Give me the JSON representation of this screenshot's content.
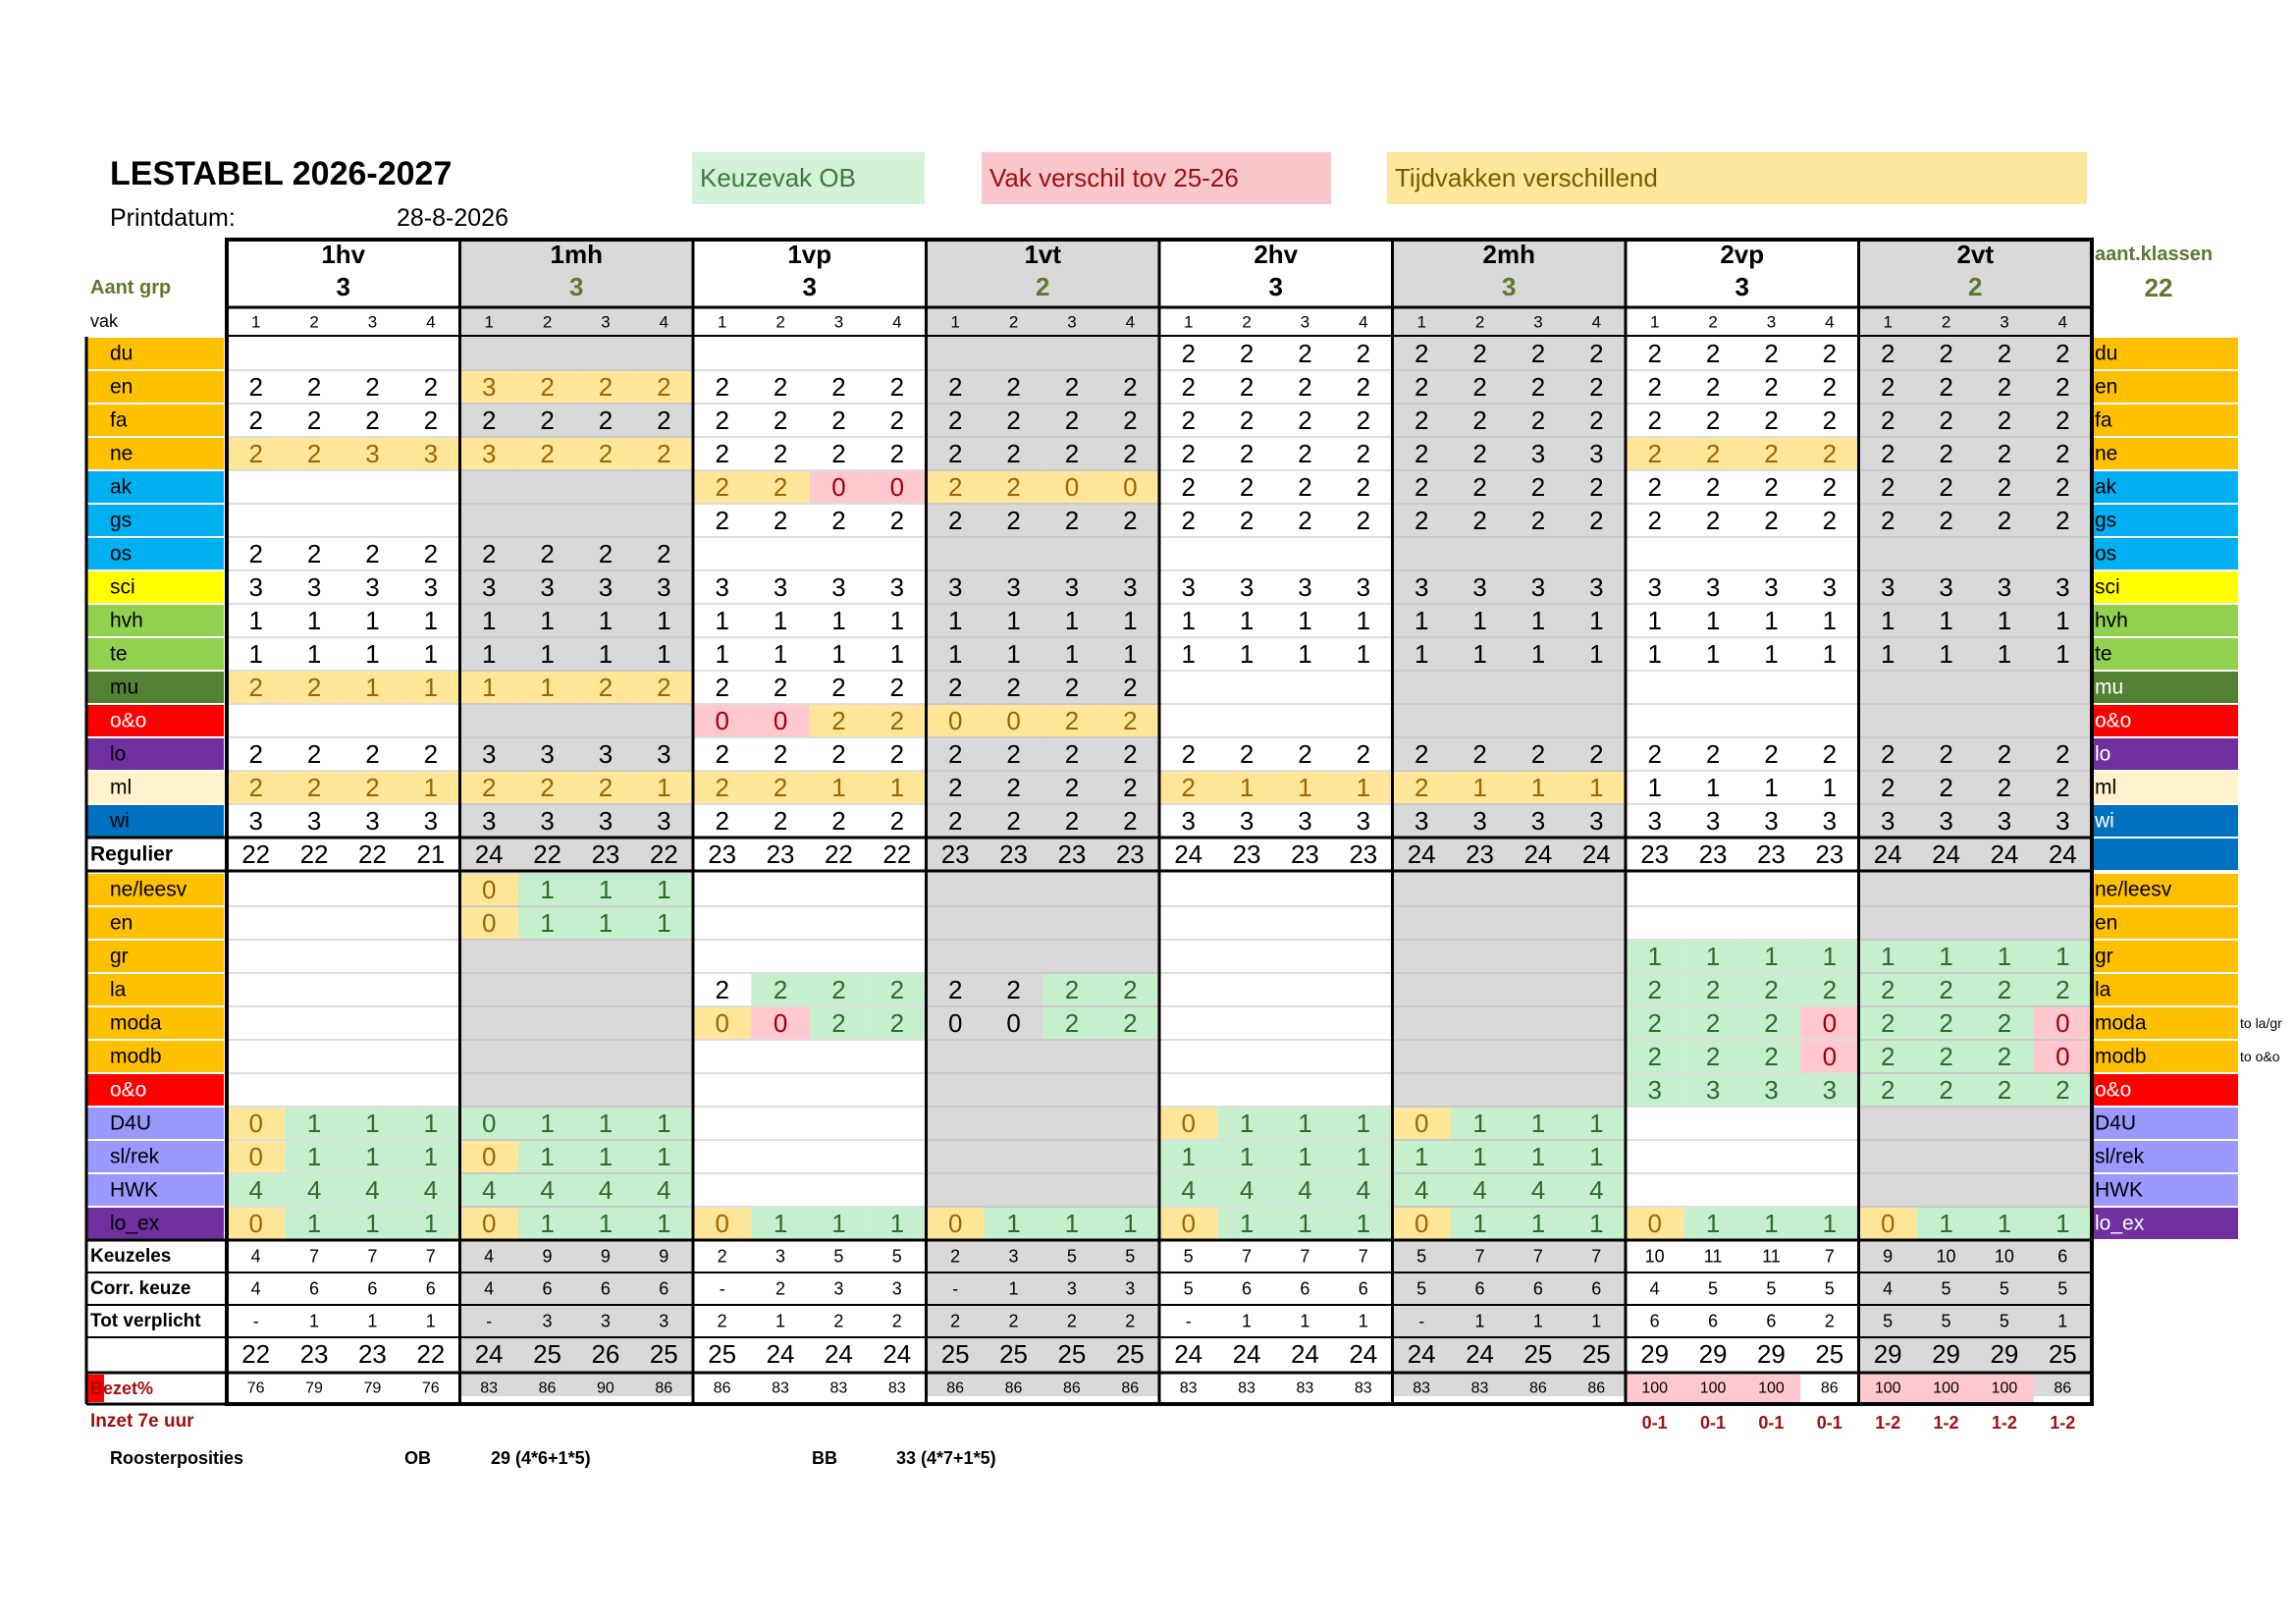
{
  "title": "LESTABEL 2026-2027",
  "print_label": "Printdatum:",
  "print_date": "28-8-2026",
  "legend": {
    "green": "Keuzevak OB",
    "red": "Vak verschil tov 25-26",
    "yellow": "Tijdvakken verschillend"
  },
  "aant_grp_label": "Aant grp",
  "aant_klassen_label": "aant.klassen",
  "aant_klassen_value": "22",
  "vak_header": "vak",
  "periods": [
    "1",
    "2",
    "3",
    "4"
  ],
  "groups": [
    {
      "name": "1hv",
      "count": "3"
    },
    {
      "name": "1mh",
      "count": "3"
    },
    {
      "name": "1vp",
      "count": "3"
    },
    {
      "name": "1vt",
      "count": "2"
    },
    {
      "name": "2hv",
      "count": "3"
    },
    {
      "name": "2mh",
      "count": "3"
    },
    {
      "name": "2vp",
      "count": "3"
    },
    {
      "name": "2vt",
      "count": "2"
    }
  ],
  "colors": {
    "orange": "#ffc000",
    "blue": "#00b0f0",
    "yellow": "#ffff00",
    "green": "#92d050",
    "darkgreen": "#548235",
    "red": "#ff0000",
    "purple": "#7030a0",
    "cream": "#fff2cc",
    "navy": "#0070c0",
    "lavender": "#9999ff",
    "grayband": "#d9d9d9",
    "cellY": "#ffe699",
    "cellG": "#c6efce",
    "cellR": "#ffc7ce"
  },
  "subjects": [
    {
      "name": "du",
      "color": "orange",
      "right": "du",
      "vals": [
        "",
        "",
        "",
        "",
        "",
        "",
        "",
        "",
        "",
        "",
        "",
        "",
        "",
        "",
        "",
        "",
        "2",
        "2",
        "2",
        "2",
        "2",
        "2",
        "2",
        "2",
        "2",
        "2",
        "2",
        "2",
        "2",
        "2",
        "2",
        "2"
      ],
      "hl": ""
    },
    {
      "name": "en",
      "color": "orange",
      "right": "en",
      "vals": [
        "2",
        "2",
        "2",
        "2",
        "3",
        "2",
        "2",
        "2",
        "2",
        "2",
        "2",
        "2",
        "2",
        "2",
        "2",
        "2",
        "2",
        "2",
        "2",
        "2",
        "2",
        "2",
        "2",
        "2",
        "2",
        "2",
        "2",
        "2",
        "2",
        "2",
        "2",
        "2"
      ],
      "hl": "....YYYY........................"
    },
    {
      "name": "fa",
      "color": "orange",
      "right": "fa",
      "vals": [
        "2",
        "2",
        "2",
        "2",
        "2",
        "2",
        "2",
        "2",
        "2",
        "2",
        "2",
        "2",
        "2",
        "2",
        "2",
        "2",
        "2",
        "2",
        "2",
        "2",
        "2",
        "2",
        "2",
        "2",
        "2",
        "2",
        "2",
        "2",
        "2",
        "2",
        "2",
        "2"
      ],
      "hl": ""
    },
    {
      "name": "ne",
      "color": "orange",
      "right": "ne",
      "vals": [
        "2",
        "2",
        "3",
        "3",
        "3",
        "2",
        "2",
        "2",
        "2",
        "2",
        "2",
        "2",
        "2",
        "2",
        "2",
        "2",
        "2",
        "2",
        "2",
        "2",
        "2",
        "2",
        "3",
        "3",
        "2",
        "2",
        "2",
        "2",
        "2",
        "2",
        "2",
        "2"
      ],
      "hl": "YYYYYYYY................YYYY........"
    },
    {
      "name": "ak",
      "color": "blue",
      "right": "ak",
      "vals": [
        "",
        "",
        "",
        "",
        "",
        "",
        "",
        "",
        "2",
        "2",
        "0",
        "0",
        "2",
        "2",
        "0",
        "0",
        "2",
        "2",
        "2",
        "2",
        "2",
        "2",
        "2",
        "2",
        "2",
        "2",
        "2",
        "2",
        "2",
        "2",
        "2",
        "2"
      ],
      "hl": "........YYRRYYYY................"
    },
    {
      "name": "gs",
      "color": "blue",
      "right": "gs",
      "vals": [
        "",
        "",
        "",
        "",
        "",
        "",
        "",
        "",
        "2",
        "2",
        "2",
        "2",
        "2",
        "2",
        "2",
        "2",
        "2",
        "2",
        "2",
        "2",
        "2",
        "2",
        "2",
        "2",
        "2",
        "2",
        "2",
        "2",
        "2",
        "2",
        "2",
        "2"
      ],
      "hl": ""
    },
    {
      "name": "os",
      "color": "blue",
      "right": "os",
      "vals": [
        "2",
        "2",
        "2",
        "2",
        "2",
        "2",
        "2",
        "2",
        "",
        "",
        "",
        "",
        "",
        "",
        "",
        "",
        "",
        "",
        "",
        "",
        "",
        "",
        "",
        "",
        "",
        "",
        "",
        "",
        "",
        "",
        "",
        ""
      ],
      "hl": ""
    },
    {
      "name": "sci",
      "color": "yellow",
      "right": "sci",
      "vals": [
        "3",
        "3",
        "3",
        "3",
        "3",
        "3",
        "3",
        "3",
        "3",
        "3",
        "3",
        "3",
        "3",
        "3",
        "3",
        "3",
        "3",
        "3",
        "3",
        "3",
        "3",
        "3",
        "3",
        "3",
        "3",
        "3",
        "3",
        "3",
        "3",
        "3",
        "3",
        "3"
      ],
      "hl": ""
    },
    {
      "name": "hvh",
      "color": "green",
      "right": "hvh",
      "vals": [
        "1",
        "1",
        "1",
        "1",
        "1",
        "1",
        "1",
        "1",
        "1",
        "1",
        "1",
        "1",
        "1",
        "1",
        "1",
        "1",
        "1",
        "1",
        "1",
        "1",
        "1",
        "1",
        "1",
        "1",
        "1",
        "1",
        "1",
        "1",
        "1",
        "1",
        "1",
        "1"
      ],
      "hl": ""
    },
    {
      "name": "te",
      "color": "green",
      "right": "te",
      "vals": [
        "1",
        "1",
        "1",
        "1",
        "1",
        "1",
        "1",
        "1",
        "1",
        "1",
        "1",
        "1",
        "1",
        "1",
        "1",
        "1",
        "1",
        "1",
        "1",
        "1",
        "1",
        "1",
        "1",
        "1",
        "1",
        "1",
        "1",
        "1",
        "1",
        "1",
        "1",
        "1"
      ],
      "hl": ""
    },
    {
      "name": "mu",
      "color": "darkgreen",
      "right": "mu",
      "vals": [
        "2",
        "2",
        "1",
        "1",
        "1",
        "1",
        "2",
        "2",
        "2",
        "2",
        "2",
        "2",
        "2",
        "2",
        "2",
        "2",
        "",
        "",
        "",
        "",
        "",
        "",
        "",
        "",
        "",
        "",
        "",
        "",
        "",
        "",
        "",
        ""
      ],
      "hl": "YYYYYYYY........................"
    },
    {
      "name": "o&o",
      "color": "red",
      "right": "o&o",
      "vals": [
        "",
        "",
        "",
        "",
        "",
        "",
        "",
        "",
        "0",
        "0",
        "2",
        "2",
        "0",
        "0",
        "2",
        "2",
        "",
        "",
        "",
        "",
        "",
        "",
        "",
        "",
        "",
        "",
        "",
        "",
        "",
        "",
        "",
        ""
      ],
      "hl": "........RRYYYYYY................"
    },
    {
      "name": "lo",
      "color": "purple",
      "right": "lo",
      "vals": [
        "2",
        "2",
        "2",
        "2",
        "3",
        "3",
        "3",
        "3",
        "2",
        "2",
        "2",
        "2",
        "2",
        "2",
        "2",
        "2",
        "2",
        "2",
        "2",
        "2",
        "2",
        "2",
        "2",
        "2",
        "2",
        "2",
        "2",
        "2",
        "2",
        "2",
        "2",
        "2"
      ],
      "hl": ""
    },
    {
      "name": "ml",
      "color": "cream",
      "right": "ml",
      "vals": [
        "2",
        "2",
        "2",
        "1",
        "2",
        "2",
        "2",
        "1",
        "2",
        "2",
        "1",
        "1",
        "2",
        "2",
        "2",
        "2",
        "2",
        "1",
        "1",
        "1",
        "2",
        "1",
        "1",
        "1",
        "1",
        "1",
        "1",
        "1",
        "2",
        "2",
        "2",
        "2"
      ],
      "hl": "YYYYYYYYYYYY....YYYYYYYY........"
    },
    {
      "name": "wi",
      "color": "navy",
      "right": "wi",
      "vals": [
        "3",
        "3",
        "3",
        "3",
        "3",
        "3",
        "3",
        "3",
        "2",
        "2",
        "2",
        "2",
        "2",
        "2",
        "2",
        "2",
        "3",
        "3",
        "3",
        "3",
        "3",
        "3",
        "3",
        "3",
        "3",
        "3",
        "3",
        "3",
        "3",
        "3",
        "3",
        "3"
      ],
      "hl": ""
    }
  ],
  "regulier": {
    "label": "Regulier",
    "vals": [
      "22",
      "22",
      "22",
      "21",
      "24",
      "22",
      "23",
      "22",
      "23",
      "23",
      "22",
      "22",
      "23",
      "23",
      "23",
      "23",
      "24",
      "23",
      "23",
      "23",
      "24",
      "23",
      "24",
      "24",
      "23",
      "23",
      "23",
      "23",
      "24",
      "24",
      "24",
      "24"
    ]
  },
  "electives": [
    {
      "name": "ne/leesv",
      "color": "orange",
      "right": "ne/leesv",
      "vals": [
        "",
        "",
        "",
        "",
        "0",
        "1",
        "1",
        "1",
        "",
        "",
        "",
        "",
        "",
        "",
        "",
        "",
        "",
        "",
        "",
        "",
        "",
        "",
        "",
        "",
        "",
        "",
        "",
        "",
        "",
        "",
        "",
        ""
      ],
      "hl": "....YGGG........................"
    },
    {
      "name": "en",
      "color": "orange",
      "right": "en",
      "vals": [
        "",
        "",
        "",
        "",
        "0",
        "1",
        "1",
        "1",
        "",
        "",
        "",
        "",
        "",
        "",
        "",
        "",
        "",
        "",
        "",
        "",
        "",
        "",
        "",
        "",
        "",
        "",
        "",
        "",
        "",
        "",
        "",
        ""
      ],
      "hl": "....YGGG........................"
    },
    {
      "name": "gr",
      "color": "orange",
      "right": "gr",
      "vals": [
        "",
        "",
        "",
        "",
        "",
        "",
        "",
        "",
        "",
        "",
        "",
        "",
        "",
        "",
        "",
        "",
        "",
        "",
        "",
        "",
        "",
        "",
        "",
        "",
        "1",
        "1",
        "1",
        "1",
        "1",
        "1",
        "1",
        "1"
      ],
      "hl": "........................GGGGGGGG"
    },
    {
      "name": "la",
      "color": "orange",
      "right": "la",
      "vals": [
        "",
        "",
        "",
        "",
        "",
        "",
        "",
        "",
        "2",
        "2",
        "2",
        "2",
        "2",
        "2",
        "2",
        "2",
        "",
        "",
        "",
        "",
        "",
        "",
        "",
        "",
        "2",
        "2",
        "2",
        "2",
        "2",
        "2",
        "2",
        "2"
      ],
      "hl": ".........GGG..GG........GGGGGGGG"
    },
    {
      "name": "moda",
      "color": "orange",
      "right": "moda",
      "note": "to la/gr",
      "vals": [
        "",
        "",
        "",
        "",
        "",
        "",
        "",
        "",
        "0",
        "0",
        "2",
        "2",
        "0",
        "0",
        "2",
        "2",
        "",
        "",
        "",
        "",
        "",
        "",
        "",
        "",
        "2",
        "2",
        "2",
        "0",
        "2",
        "2",
        "2",
        "0"
      ],
      "hl": "........YRGG..GG........GGGRGGGR"
    },
    {
      "name": "modb",
      "color": "orange",
      "right": "modb",
      "note": "to o&o",
      "vals": [
        "",
        "",
        "",
        "",
        "",
        "",
        "",
        "",
        "",
        "",
        "",
        "",
        "",
        "",
        "",
        "",
        "",
        "",
        "",
        "",
        "",
        "",
        "",
        "",
        "2",
        "2",
        "2",
        "0",
        "2",
        "2",
        "2",
        "0"
      ],
      "hl": "........................GGGRGGGR"
    },
    {
      "name": "o&o",
      "color": "red",
      "right": "o&o",
      "vals": [
        "",
        "",
        "",
        "",
        "",
        "",
        "",
        "",
        "",
        "",
        "",
        "",
        "",
        "",
        "",
        "",
        "",
        "",
        "",
        "",
        "",
        "",
        "",
        "",
        "3",
        "3",
        "3",
        "3",
        "2",
        "2",
        "2",
        "2"
      ],
      "hl": "........................GGGGGGGG"
    },
    {
      "name": "D4U",
      "color": "lavender",
      "right": "D4U",
      "vals": [
        "0",
        "1",
        "1",
        "1",
        "0",
        "1",
        "1",
        "1",
        "",
        "",
        "",
        "",
        "",
        "",
        "",
        "",
        "0",
        "1",
        "1",
        "1",
        "0",
        "1",
        "1",
        "1",
        "",
        "",
        "",
        "",
        "",
        "",
        "",
        ""
      ],
      "hl": "YGGGGGGG........YGGGYGGG........"
    },
    {
      "name": "sl/rek",
      "color": "lavender",
      "right": "sl/rek",
      "vals": [
        "0",
        "1",
        "1",
        "1",
        "0",
        "1",
        "1",
        "1",
        "",
        "",
        "",
        "",
        "",
        "",
        "",
        "",
        "1",
        "1",
        "1",
        "1",
        "1",
        "1",
        "1",
        "1",
        "",
        "",
        "",
        "",
        "",
        "",
        "",
        ""
      ],
      "hl": "YGGGYGGG........GGGGGGGG........"
    },
    {
      "name": "HWK",
      "color": "lavender",
      "right": "HWK",
      "vals": [
        "4",
        "4",
        "4",
        "4",
        "4",
        "4",
        "4",
        "4",
        "",
        "",
        "",
        "",
        "",
        "",
        "",
        "",
        "4",
        "4",
        "4",
        "4",
        "4",
        "4",
        "4",
        "4",
        "",
        "",
        "",
        "",
        "",
        "",
        "",
        ""
      ],
      "hl": "GGGGGGGG........GGGGGGGG........"
    },
    {
      "name": "lo_ex",
      "color": "purple",
      "right": "lo_ex",
      "vals": [
        "0",
        "1",
        "1",
        "1",
        "0",
        "1",
        "1",
        "1",
        "0",
        "1",
        "1",
        "1",
        "0",
        "1",
        "1",
        "1",
        "0",
        "1",
        "1",
        "1",
        "0",
        "1",
        "1",
        "1",
        "0",
        "1",
        "1",
        "1",
        "0",
        "1",
        "1",
        "1"
      ],
      "hl": "YGGGYGGGYGGGYGGGYGGGYGGGYGGGYGGG"
    }
  ],
  "summary": [
    {
      "label": "Keuzeles",
      "vals": [
        "4",
        "7",
        "7",
        "7",
        "4",
        "9",
        "9",
        "9",
        "2",
        "3",
        "5",
        "5",
        "2",
        "3",
        "5",
        "5",
        "5",
        "7",
        "7",
        "7",
        "5",
        "7",
        "7",
        "7",
        "10",
        "11",
        "11",
        "7",
        "9",
        "10",
        "10",
        "6"
      ]
    },
    {
      "label": "Corr. keuze",
      "vals": [
        "4",
        "6",
        "6",
        "6",
        "4",
        "6",
        "6",
        "6",
        "-",
        "2",
        "3",
        "3",
        "-",
        "1",
        "3",
        "3",
        "5",
        "6",
        "6",
        "6",
        "5",
        "6",
        "6",
        "6",
        "4",
        "5",
        "5",
        "5",
        "4",
        "5",
        "5",
        "5"
      ]
    },
    {
      "label": "Tot verplicht",
      "vals": [
        "-",
        "1",
        "1",
        "1",
        "-",
        "3",
        "3",
        "3",
        "2",
        "1",
        "2",
        "2",
        "2",
        "2",
        "2",
        "2",
        "-",
        "1",
        "1",
        "1",
        "-",
        "1",
        "1",
        "1",
        "6",
        "6",
        "6",
        "2",
        "5",
        "5",
        "5",
        "1"
      ]
    }
  ],
  "totals": [
    "22",
    "23",
    "23",
    "22",
    "24",
    "25",
    "26",
    "25",
    "25",
    "24",
    "24",
    "24",
    "25",
    "25",
    "25",
    "25",
    "24",
    "24",
    "24",
    "24",
    "24",
    "24",
    "25",
    "25",
    "29",
    "29",
    "29",
    "25",
    "29",
    "29",
    "29",
    "25"
  ],
  "bezet": {
    "label": "Bezet%",
    "vals": [
      "76",
      "79",
      "79",
      "76",
      "83",
      "86",
      "90",
      "86",
      "86",
      "83",
      "83",
      "83",
      "86",
      "86",
      "86",
      "86",
      "83",
      "83",
      "83",
      "83",
      "83",
      "83",
      "86",
      "86",
      "100",
      "100",
      "100",
      "86",
      "100",
      "100",
      "100",
      "86"
    ],
    "hl": "........................RRR.RRR."
  },
  "inzet": {
    "label": "Inzet 7e uur",
    "vals": [
      "0-1",
      "0-1",
      "0-1",
      "0-1",
      "1-2",
      "1-2",
      "1-2",
      "1-2"
    ]
  },
  "roosterposities": {
    "label": "Roosterposities",
    "ob_label": "OB",
    "ob_value": "29 (4*6+1*5)",
    "bb_label": "BB",
    "bb_value": "33 (4*7+1*5)"
  }
}
